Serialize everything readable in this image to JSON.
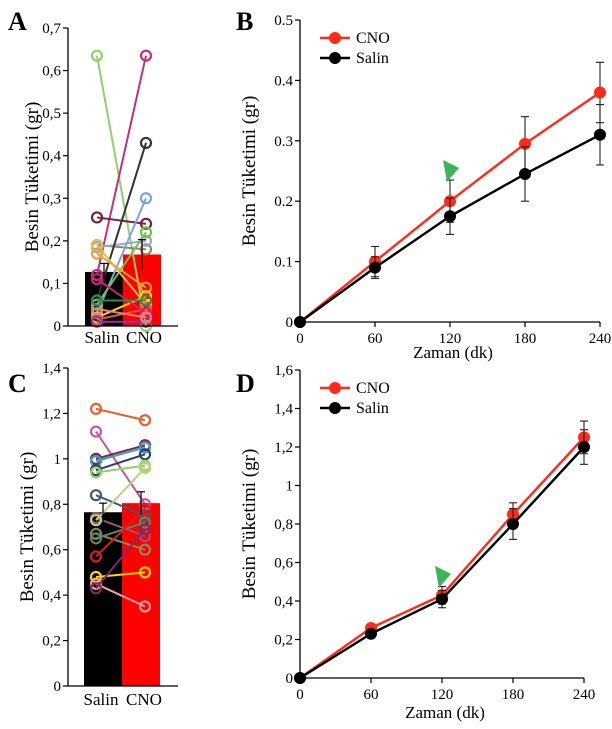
{
  "chart_data": [
    {
      "panel": "A",
      "type": "bar",
      "categories": [
        "Salin",
        "CNO"
      ],
      "values": [
        0.127,
        0.168
      ],
      "errors": [
        0.02,
        0.035
      ],
      "bar_colors": [
        "#000000",
        "#ff0000"
      ],
      "ylabel": "Besin Tüketimi (gr)",
      "ylim": [
        0,
        0.7
      ],
      "yticks": [
        0,
        0.1,
        0.2,
        0.3,
        0.4,
        0.5,
        0.6,
        0.7
      ],
      "ytick_labels": [
        "0",
        "0,1",
        "0,2",
        "0,3",
        "0,4",
        "0,5",
        "0,6",
        "0,7"
      ],
      "paired_points": [
        {
          "a": 0.635,
          "b": 0.0,
          "color": "#8fd16a"
        },
        {
          "a": 0.12,
          "b": 0.635,
          "color": "#c2307a"
        },
        {
          "a": 0.255,
          "b": 0.24,
          "color": "#7a1e3c"
        },
        {
          "a": 0.19,
          "b": 0.18,
          "color": "#8a8a5a"
        },
        {
          "a": 0.185,
          "b": 0.2,
          "color": "#9aa6c8"
        },
        {
          "a": 0.06,
          "b": 0.43,
          "color": "#333333"
        },
        {
          "a": 0.03,
          "b": 0.3,
          "color": "#7fa3d9"
        },
        {
          "a": 0.05,
          "b": 0.22,
          "color": "#6cc24a"
        },
        {
          "a": 0.19,
          "b": 0.05,
          "color": "#e0c050"
        },
        {
          "a": 0.17,
          "b": 0.09,
          "color": "#f0a030"
        },
        {
          "a": 0.02,
          "b": 0.07,
          "color": "#ffd700"
        },
        {
          "a": 0.015,
          "b": 0.04,
          "color": "#e06020"
        },
        {
          "a": 0.01,
          "b": 0.01,
          "color": "#9b30a0"
        },
        {
          "a": 0.11,
          "b": 0.03,
          "color": "#d02070"
        },
        {
          "a": 0.04,
          "b": 0.02,
          "color": "#f08080"
        },
        {
          "a": 0.06,
          "b": 0.06,
          "color": "#2e8b57"
        }
      ]
    },
    {
      "panel": "B",
      "type": "line",
      "x": [
        0,
        60,
        120,
        180,
        240
      ],
      "series": [
        {
          "name": "CNO",
          "values": [
            0,
            0.1,
            0.2,
            0.295,
            0.38
          ],
          "errors": [
            0,
            0.025,
            0.035,
            0.045,
            0.05
          ],
          "color": "#ff2a1a"
        },
        {
          "name": "Salin",
          "values": [
            0,
            0.09,
            0.175,
            0.245,
            0.31
          ],
          "errors": [
            0,
            0.018,
            0.03,
            0.045,
            0.05
          ],
          "color": "#000000"
        }
      ],
      "xlabel": "Zaman (dk)",
      "ylabel": "Besin Tüketimi (gr)",
      "ylim": [
        0,
        0.5
      ],
      "xlim": [
        0,
        240
      ],
      "yticks": [
        0,
        0.1,
        0.2,
        0.3,
        0.4,
        0.5
      ],
      "ytick_labels": [
        "0",
        "0.1",
        "0.2",
        "0.3",
        "0.4",
        "0.5"
      ],
      "xticks": [
        0,
        60,
        120,
        180,
        240
      ],
      "xtick_labels": [
        "0",
        "60",
        "120",
        "180",
        "240"
      ],
      "marker_at_x": 120,
      "marker_at_y": 0.245,
      "marker_color": "#3cb55a",
      "legend_position": "top-left"
    },
    {
      "panel": "C",
      "type": "bar",
      "categories": [
        "Salin",
        "CNO"
      ],
      "values": [
        0.765,
        0.805
      ],
      "errors": [
        0.04,
        0.05
      ],
      "bar_colors": [
        "#000000",
        "#ff0000"
      ],
      "ylabel": "Besin Tüketimi (gr)",
      "ylim": [
        0,
        1.4
      ],
      "yticks": [
        0,
        0.2,
        0.4,
        0.6,
        0.8,
        1.0,
        1.2,
        1.4
      ],
      "ytick_labels": [
        "0",
        "0,2",
        "0,4",
        "0,6",
        "0,8",
        "1",
        "1,2",
        "1,4"
      ],
      "paired_points": [
        {
          "a": 1.22,
          "b": 1.17,
          "color": "#e8602c"
        },
        {
          "a": 1.12,
          "b": 0.8,
          "color": "#c45a9a"
        },
        {
          "a": 1.0,
          "b": 1.06,
          "color": "#8a1f4a"
        },
        {
          "a": 0.99,
          "b": 1.05,
          "color": "#3aa0c8"
        },
        {
          "a": 0.95,
          "b": 1.02,
          "color": "#2c3e70"
        },
        {
          "a": 0.94,
          "b": 0.97,
          "color": "#8fd16a"
        },
        {
          "a": 0.84,
          "b": 0.75,
          "color": "#3d5a7a"
        },
        {
          "a": 0.74,
          "b": 0.66,
          "color": "#a05070"
        },
        {
          "a": 0.73,
          "b": 0.96,
          "color": "#b5d67a"
        },
        {
          "a": 0.67,
          "b": 0.6,
          "color": "#8a8a5a"
        },
        {
          "a": 0.65,
          "b": 0.72,
          "color": "#5a8a5a"
        },
        {
          "a": 0.57,
          "b": 0.78,
          "color": "#d02020"
        },
        {
          "a": 0.48,
          "b": 0.5,
          "color": "#ffd700"
        },
        {
          "a": 0.45,
          "b": 0.35,
          "color": "#f4a0a0"
        },
        {
          "a": 0.43,
          "b": 0.69,
          "color": "#7a2a6a"
        }
      ]
    },
    {
      "panel": "D",
      "type": "line",
      "x": [
        0,
        60,
        120,
        180,
        240
      ],
      "series": [
        {
          "name": "CNO",
          "values": [
            0,
            0.26,
            0.43,
            0.85,
            1.25
          ],
          "errors": [
            0,
            0.02,
            0.045,
            0.06,
            0.085
          ],
          "color": "#ff2a1a"
        },
        {
          "name": "Salin",
          "values": [
            0,
            0.23,
            0.41,
            0.8,
            1.2
          ],
          "errors": [
            0,
            0.02,
            0.045,
            0.08,
            0.09
          ],
          "color": "#000000"
        }
      ],
      "xlabel": "Zaman (dk)",
      "ylabel": "Besin Tüketimi (gr)",
      "ylim": [
        0,
        1.6
      ],
      "xlim": [
        0,
        240
      ],
      "yticks": [
        0,
        0.2,
        0.4,
        0.6,
        0.8,
        1.0,
        1.2,
        1.4,
        1.6
      ],
      "ytick_labels": [
        "0",
        "0,2",
        "0,4",
        "0,6",
        "0,8",
        "1",
        "1,2",
        "1,4",
        "1,6"
      ],
      "xticks": [
        0,
        60,
        120,
        180,
        240
      ],
      "xtick_labels": [
        "0",
        "60",
        "120",
        "180",
        "240"
      ],
      "marker_at_x": 120,
      "marker_at_y": 0.51,
      "marker_color": "#3cb55a",
      "legend_position": "top-left"
    }
  ]
}
